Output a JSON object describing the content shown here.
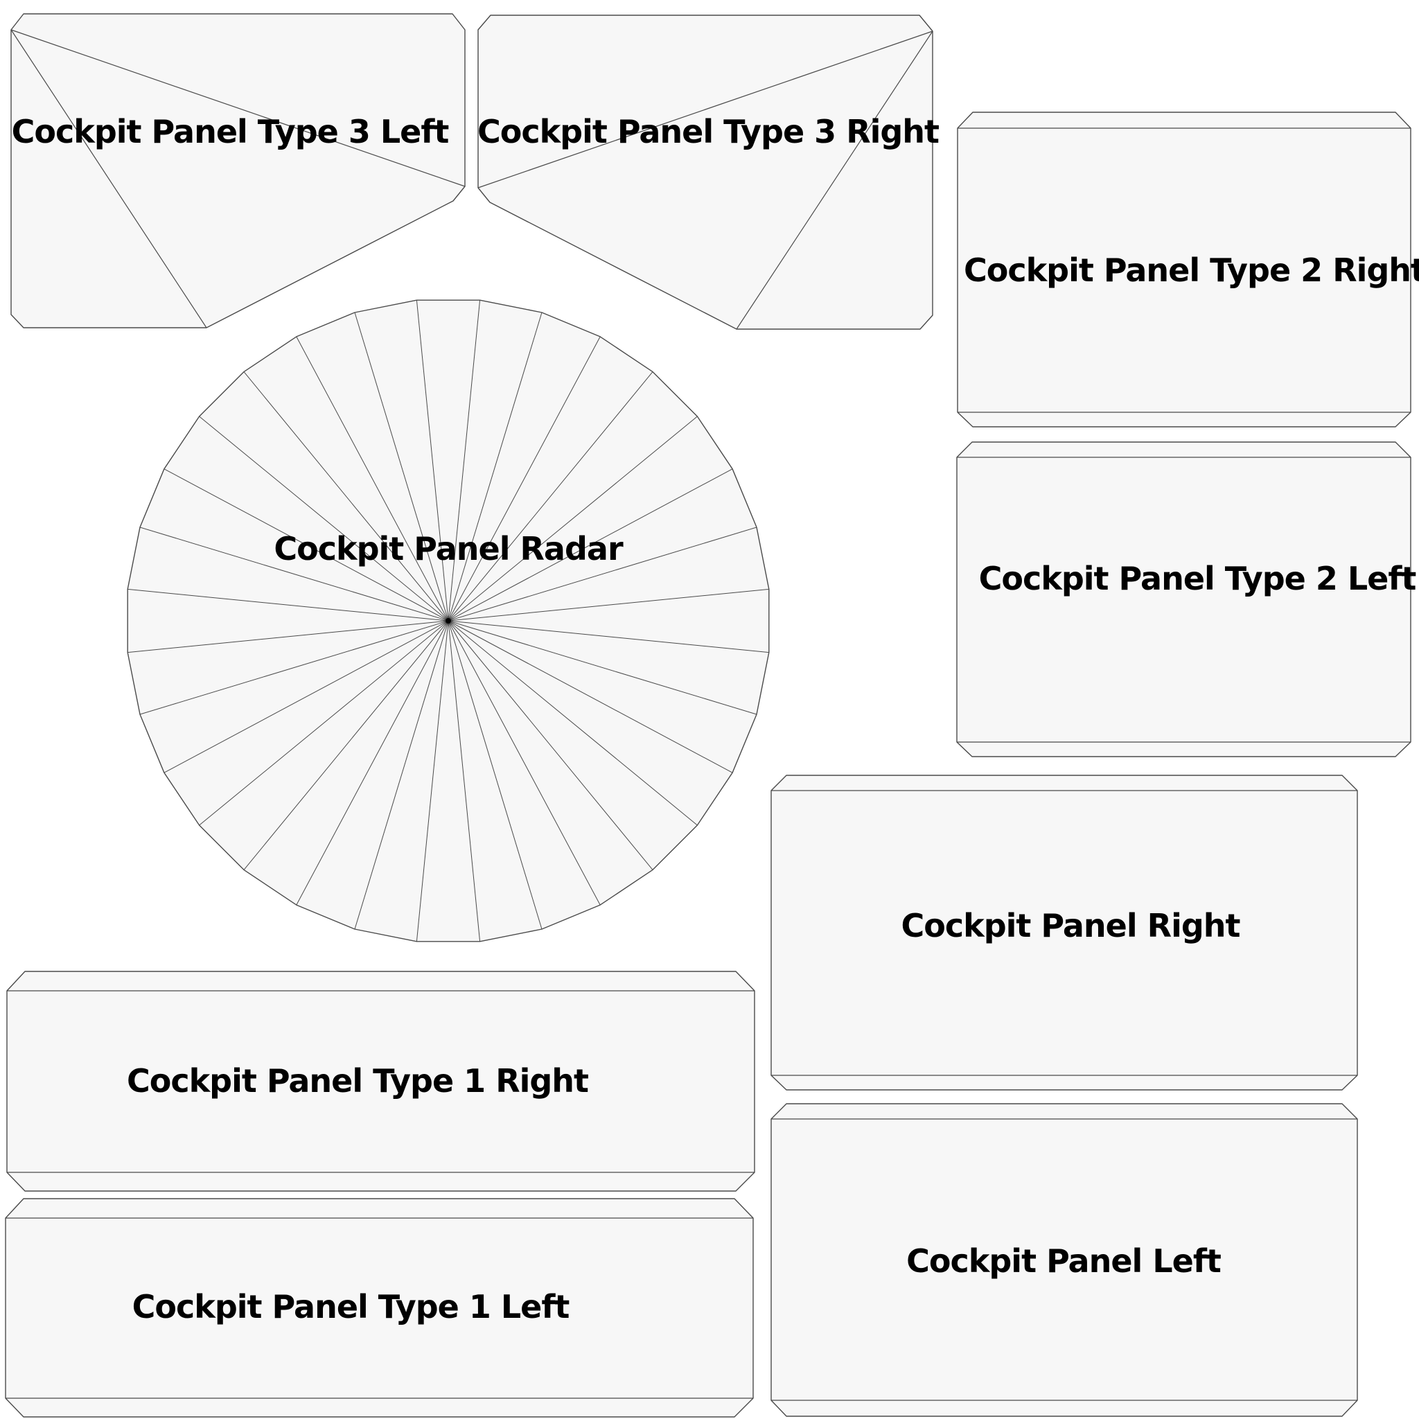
{
  "sheet": {
    "background_color": "#ffffff",
    "panel_fill_color": "#f7f7f7",
    "line_color": "#4a4a4a",
    "label_color": "#000000"
  },
  "panels": {
    "type3_left": "Cockpit Panel Type 3 Left",
    "type3_right": "Cockpit Panel Type 3 Right",
    "type2_right": "Cockpit Panel Type 2 Right",
    "type2_left": "Cockpit Panel Type 2 Left",
    "radar": "Cockpit Panel Radar",
    "right": "Cockpit Panel Right",
    "left": "Cockpit Panel Left",
    "type1_right": "Cockpit Panel Type 1 Right",
    "type1_left": "Cockpit Panel Type 1 Left"
  },
  "radar_segments": 32
}
